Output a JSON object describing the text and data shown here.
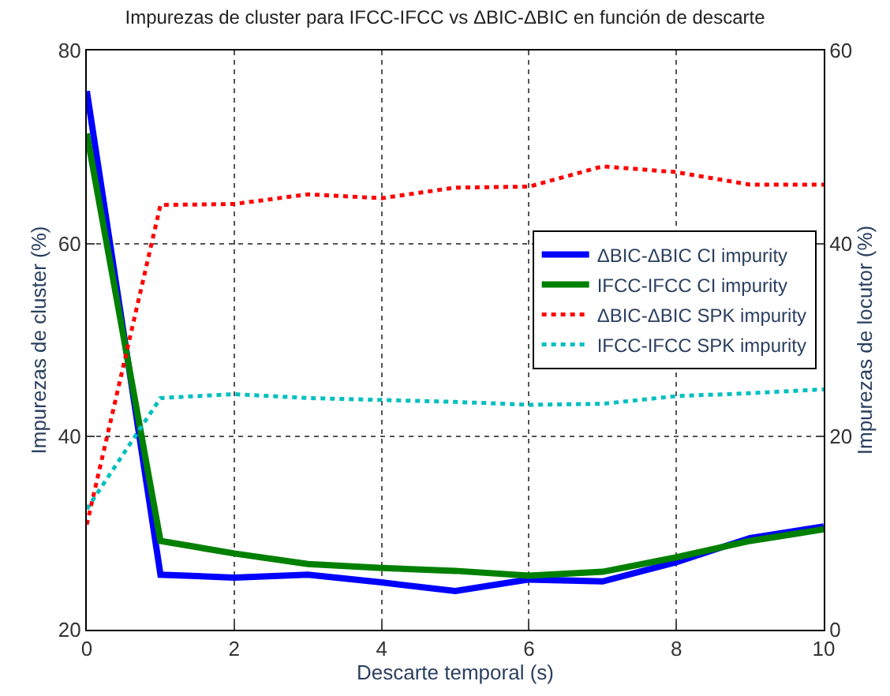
{
  "chart_data": {
    "type": "line",
    "title": "Impurezas de cluster para IFCC-IFCC vs ΔBIC-ΔBIC en función de descarte",
    "xlabel": "Descarte temporal (s)",
    "ylabel": "Impurezas de cluster (%)",
    "y2label": "Impurezas de locutor (%)",
    "x": [
      0,
      1,
      2,
      3,
      4,
      5,
      6,
      7,
      8,
      9,
      10
    ],
    "series": [
      {
        "name": "ΔBIC-ΔBIC CI impurity",
        "color": "#0000ff",
        "line_style": "solid",
        "values": [
          75.8,
          25.7,
          25.4,
          25.7,
          24.9,
          24.0,
          25.2,
          25.0,
          27.0,
          29.5,
          30.7
        ]
      },
      {
        "name": "IFCC-IFCC CI impurity",
        "color": "#008000",
        "line_style": "solid",
        "values": [
          71.4,
          29.2,
          27.9,
          26.8,
          26.4,
          26.1,
          25.6,
          26.0,
          27.5,
          29.2,
          30.4
        ]
      },
      {
        "name": "ΔBIC-ΔBIC SPK impurity",
        "color": "#ff0000",
        "line_style": "dotted",
        "axis": "y2",
        "values": [
          10.9,
          44.0,
          44.1,
          45.1,
          44.7,
          45.8,
          45.9,
          48.0,
          47.4,
          46.1,
          46.1
        ]
      },
      {
        "name": "IFCC-IFCC SPK impurity",
        "color": "#00bfbf",
        "line_style": "dotted",
        "axis": "y2",
        "values": [
          12.5,
          24.0,
          24.4,
          24.0,
          23.8,
          23.6,
          23.3,
          23.4,
          24.2,
          24.5,
          24.9
        ]
      }
    ],
    "xlim": [
      0,
      10
    ],
    "xticks": [
      0,
      2,
      4,
      6,
      8,
      10
    ],
    "ylim": [
      20,
      80
    ],
    "yticks": [
      20,
      40,
      60,
      80
    ],
    "y2lim": [
      0,
      60
    ],
    "y2ticks": [
      0,
      20,
      40,
      60
    ],
    "grid": true,
    "legend": "right"
  }
}
